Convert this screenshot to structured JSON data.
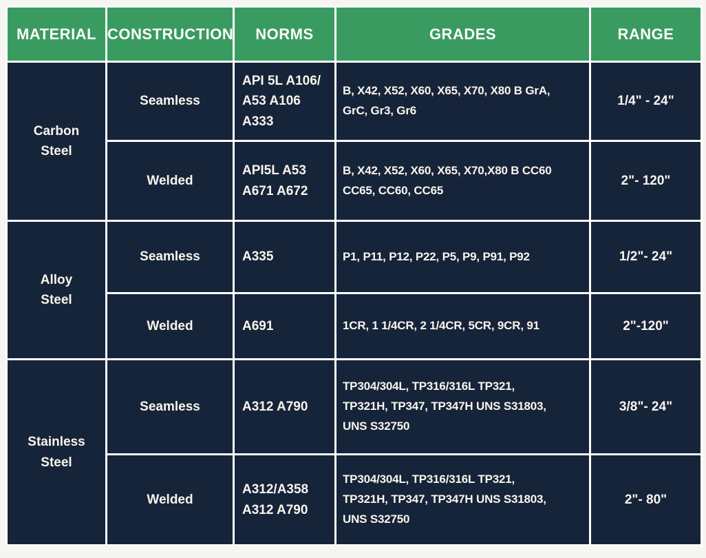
{
  "colors": {
    "header_background": "#3a9b61",
    "cell_background": "#16243a",
    "grid_line": "#ffffff",
    "page_background": "#f6f5f1",
    "header_text": "#fdfcf7",
    "cell_text": "#f9f5ec"
  },
  "table": {
    "headers": [
      "MATERIAL",
      "CONSTRUCTION",
      "NORMS",
      "GRADES",
      "RANGE"
    ],
    "groups": [
      {
        "material": "Carbon\nSteel",
        "rows": [
          {
            "construction": "Seamless",
            "norms": "API 5L A106/\nA53 A106\nA333",
            "grades": "B, X42, X52, X60, X65, X70, X80 B GrA,\nGrC, Gr3, Gr6",
            "range": "1/4\" - 24\""
          },
          {
            "construction": "Welded",
            "norms": "API5L A53\nA671 A672",
            "grades": "B, X42, X52, X60, X65, X70,X80 B CC60\nCC65, CC60, CC65",
            "range": "2\"- 120\""
          }
        ]
      },
      {
        "material": "Alloy\nSteel",
        "rows": [
          {
            "construction": "Seamless",
            "norms": "A335",
            "grades": "P1, P11, P12, P22, P5, P9, P91, P92",
            "range": "1/2\"- 24\""
          },
          {
            "construction": "Welded",
            "norms": "A691",
            "grades": "1CR, 1 1/4CR, 2 1/4CR, 5CR, 9CR, 91",
            "range": "2\"-120\""
          }
        ]
      },
      {
        "material": "Stainless\nSteel",
        "rows": [
          {
            "construction": "Seamless",
            "norms": "A312 A790",
            "grades": "TP304/304L, TP316/316L TP321,\nTP321H, TP347, TP347H UNS S31803,\nUNS S32750",
            "range": "3/8\"- 24\""
          },
          {
            "construction": "Welded",
            "norms": "A312/A358\nA312 A790",
            "grades": "TP304/304L, TP316/316L TP321,\nTP321H, TP347, TP347H UNS S31803,\nUNS S32750",
            "range": "2\"- 80\""
          }
        ]
      }
    ]
  }
}
